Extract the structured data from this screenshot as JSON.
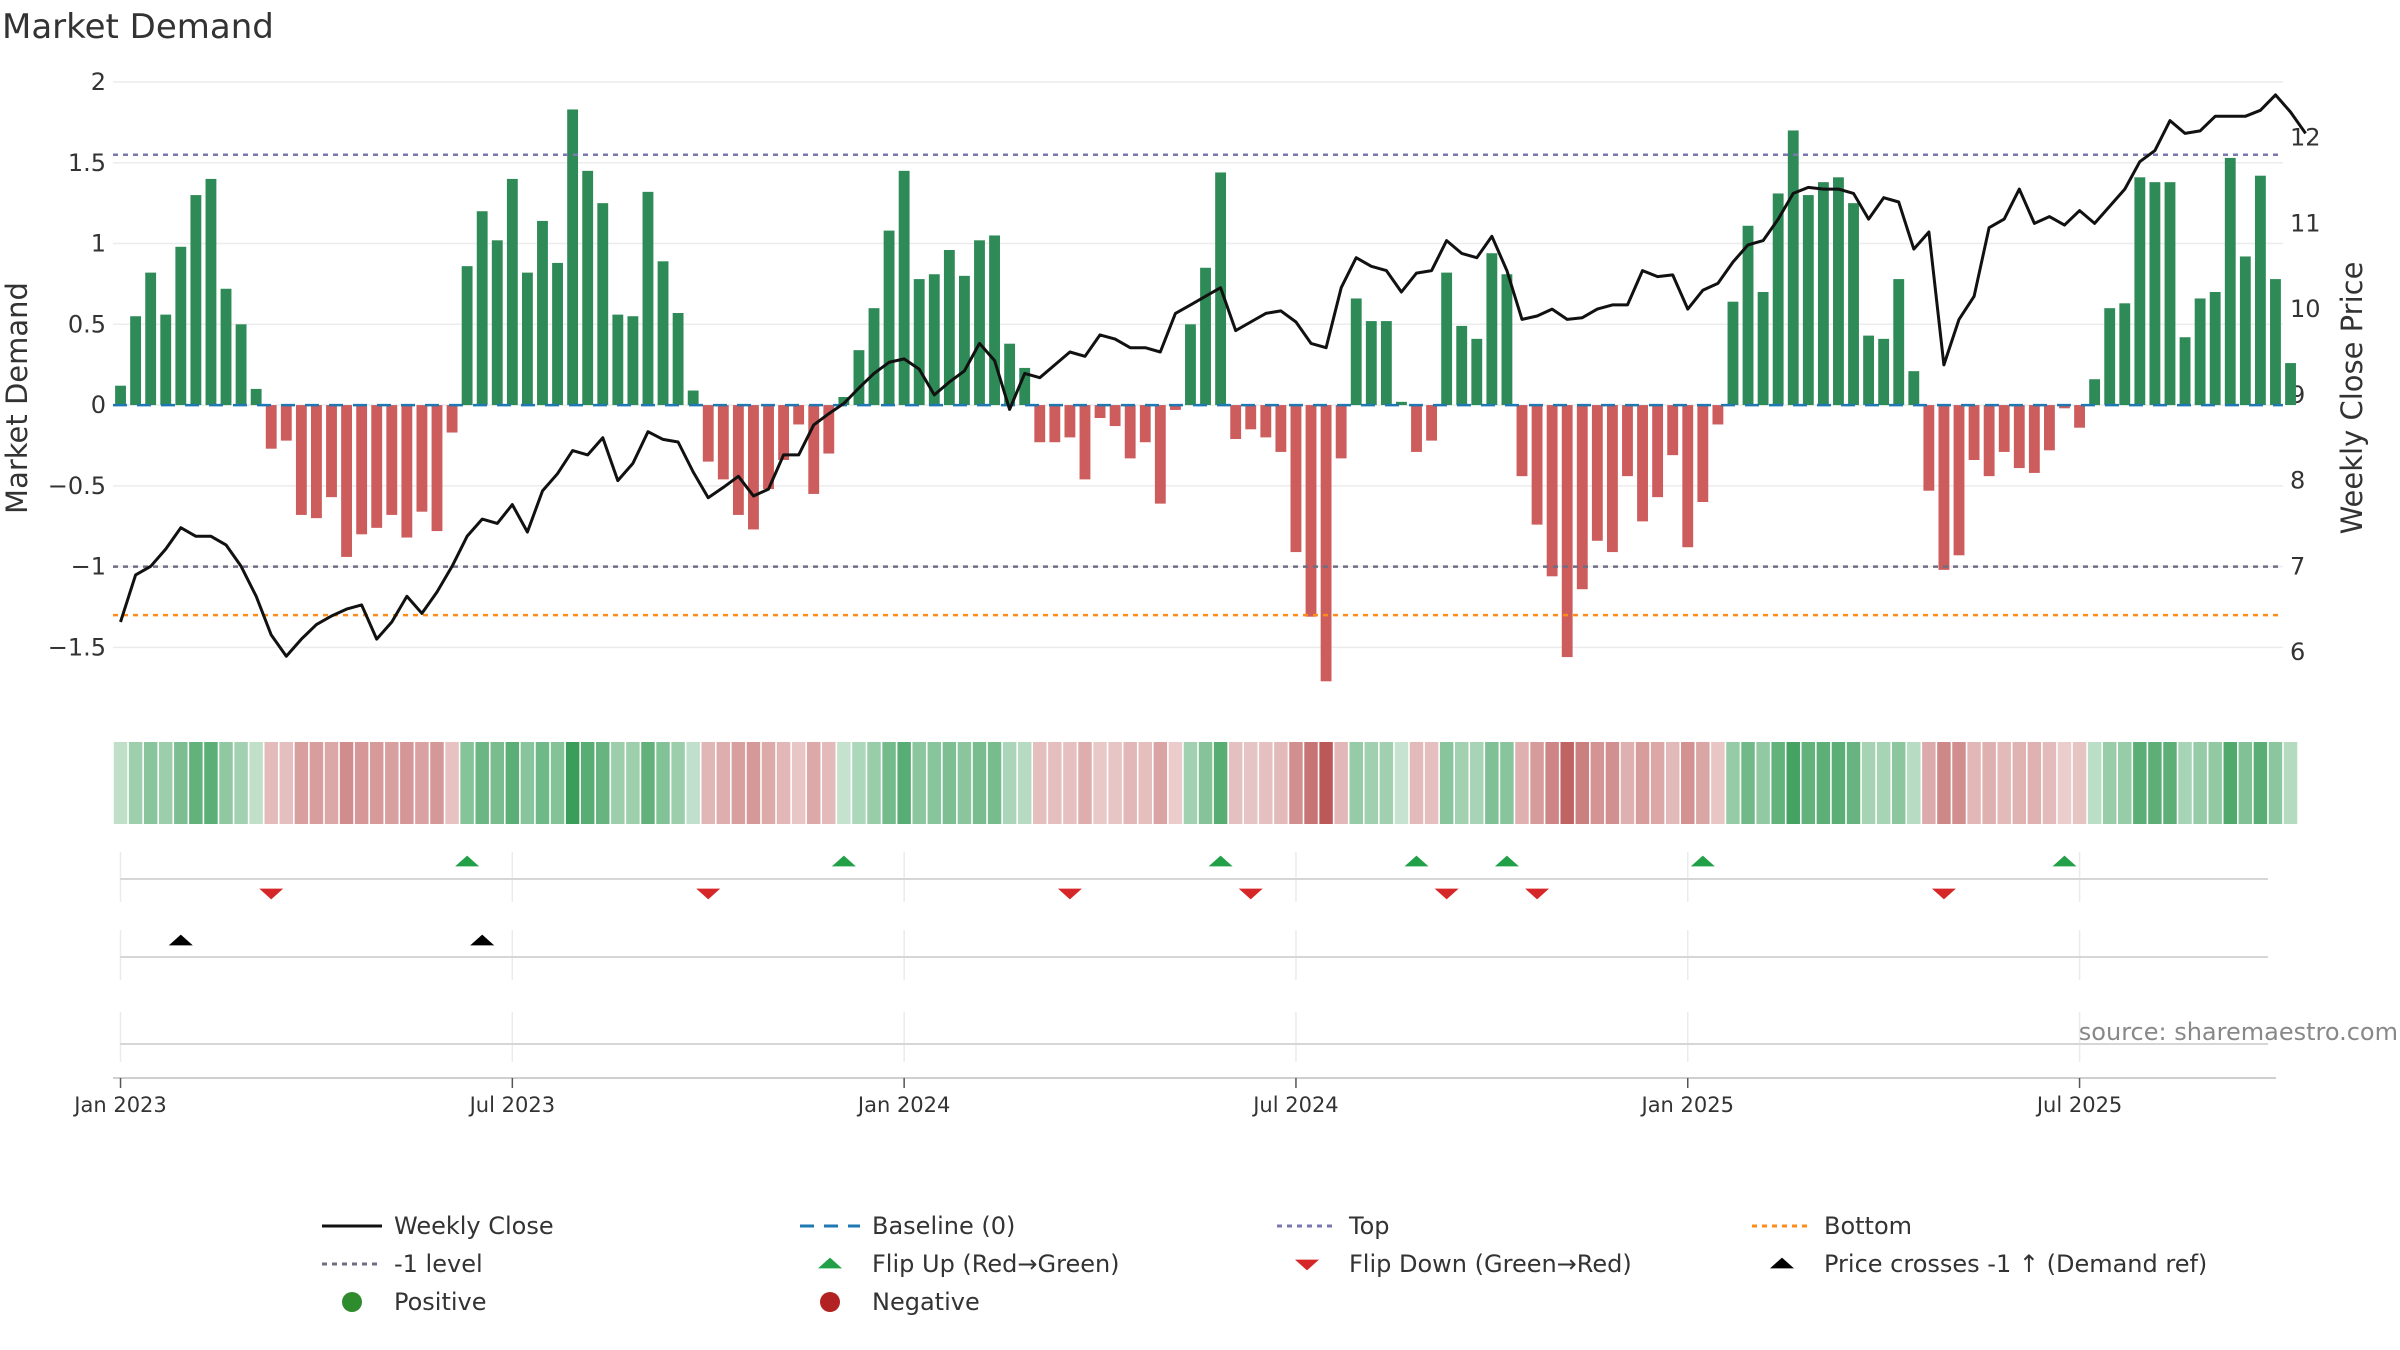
{
  "chart_data": {
    "type": "bar",
    "title": "Market Demand",
    "ylabel_left": "Market Demand",
    "ylabel_right": "Weekly Close Price",
    "left_axis": {
      "ylim": [
        -1.9,
        2
      ],
      "ticks": [
        -1.5,
        -1,
        -0.5,
        0,
        0.5,
        1,
        1.5,
        2
      ],
      "tick_labels": [
        "−1.5",
        "−1",
        "−0.5",
        "0",
        "0.5",
        "1",
        "1.5",
        "2"
      ]
    },
    "right_axis": {
      "ylim": [
        5.3,
        12.65
      ],
      "ticks": [
        6,
        7,
        8,
        9,
        10,
        11,
        12
      ],
      "tick_labels": [
        "6",
        "7",
        "8",
        "9",
        "10",
        "11",
        "12"
      ]
    },
    "x_ticks": [
      {
        "label": "Jan 2023",
        "week": 1
      },
      {
        "label": "Jul 2023",
        "week": 27
      },
      {
        "label": "Jan 2024",
        "week": 53
      },
      {
        "label": "Jul 2024",
        "week": 79
      },
      {
        "label": "Jan 2025",
        "week": 105
      },
      {
        "label": "Jul 2025",
        "week": 131
      }
    ],
    "n_weeks": 144,
    "reference_lines": {
      "top": 1.55,
      "bottom": -1.3,
      "minus_one": -1,
      "baseline": 0
    },
    "series": [
      {
        "name": "Market Demand",
        "type": "bar",
        "values": [
          0.12,
          0.55,
          0.82,
          0.56,
          0.98,
          1.3,
          1.4,
          0.72,
          0.5,
          0.1,
          -0.27,
          -0.22,
          -0.68,
          -0.7,
          -0.57,
          -0.94,
          -0.8,
          -0.76,
          -0.68,
          -0.82,
          -0.66,
          -0.78,
          -0.17,
          0.86,
          1.2,
          1.02,
          1.4,
          0.82,
          1.14,
          0.88,
          1.83,
          1.45,
          1.25,
          0.56,
          0.55,
          1.32,
          0.89,
          0.57,
          0.09,
          -0.35,
          -0.46,
          -0.68,
          -0.77,
          -0.52,
          -0.34,
          -0.12,
          -0.55,
          -0.3,
          0.05,
          0.34,
          0.6,
          1.08,
          1.45,
          0.78,
          0.81,
          0.96,
          0.8,
          1.02,
          1.05,
          0.38,
          0.23,
          -0.23,
          -0.23,
          -0.2,
          -0.46,
          -0.08,
          -0.13,
          -0.33,
          -0.23,
          -0.61,
          -0.03,
          0.5,
          0.85,
          1.44,
          -0.21,
          -0.15,
          -0.2,
          -0.29,
          -0.91,
          -1.31,
          -1.71,
          -0.33,
          0.66,
          0.52,
          0.52,
          0.02,
          -0.29,
          -0.22,
          0.82,
          0.49,
          0.41,
          0.94,
          0.81,
          -0.44,
          -0.74,
          -1.06,
          -1.56,
          -1.14,
          -0.84,
          -0.91,
          -0.44,
          -0.72,
          -0.57,
          -0.31,
          -0.88,
          -0.6,
          -0.12,
          0.64,
          1.11,
          0.7,
          1.31,
          1.7,
          1.3,
          1.38,
          1.41,
          1.25,
          0.43,
          0.41,
          0.78,
          0.21,
          -0.53,
          -1.02,
          -0.93,
          -0.34,
          -0.44,
          -0.29,
          -0.39,
          -0.42,
          -0.28,
          -0.02,
          -0.14,
          0.16,
          0.6,
          0.63,
          1.41,
          1.38,
          1.38,
          0.42,
          0.66,
          0.7,
          1.53,
          0.92,
          1.42,
          0.78,
          0.26
        ]
      },
      {
        "name": "Weekly Close",
        "type": "line",
        "values": [
          6.35,
          6.9,
          7.0,
          7.2,
          7.45,
          7.35,
          7.35,
          7.25,
          7.0,
          6.65,
          6.2,
          5.95,
          6.15,
          6.32,
          6.42,
          6.5,
          6.55,
          6.15,
          6.35,
          6.65,
          6.45,
          6.7,
          7.0,
          7.35,
          7.55,
          7.5,
          7.72,
          7.4,
          7.88,
          8.08,
          8.35,
          8.3,
          8.5,
          8.0,
          8.2,
          8.57,
          8.48,
          8.45,
          8.1,
          7.8,
          7.92,
          8.05,
          7.82,
          7.9,
          8.3,
          8.3,
          8.65,
          8.78,
          8.9,
          9.08,
          9.25,
          9.38,
          9.42,
          9.3,
          9.0,
          9.15,
          9.28,
          9.6,
          9.4,
          8.83,
          9.25,
          9.2,
          9.35,
          9.5,
          9.45,
          9.7,
          9.65,
          9.55,
          9.55,
          9.5,
          9.95,
          10.05,
          10.15,
          10.25,
          9.75,
          9.85,
          9.95,
          9.98,
          9.85,
          9.6,
          9.55,
          10.25,
          10.6,
          10.5,
          10.45,
          10.2,
          10.42,
          10.45,
          10.8,
          10.65,
          10.6,
          10.85,
          10.45,
          9.88,
          9.92,
          10.0,
          9.88,
          9.9,
          10.0,
          10.05,
          10.05,
          10.45,
          10.38,
          10.4,
          10.0,
          10.22,
          10.3,
          10.55,
          10.75,
          10.8,
          11.05,
          11.35,
          11.42,
          11.4,
          11.4,
          11.35,
          11.05,
          11.3,
          11.25,
          10.7,
          10.9,
          9.35,
          9.88,
          10.15,
          10.95,
          11.05,
          11.4,
          11.0,
          11.08,
          10.98,
          11.15,
          11.0,
          11.2,
          11.4,
          11.72,
          11.85,
          12.2,
          12.05,
          12.08,
          12.25,
          12.25,
          12.25,
          12.32,
          12.5,
          12.3,
          12.05
        ]
      }
    ],
    "flip_up_weeks": [
      23,
      48,
      73,
      86,
      92,
      105,
      129
    ],
    "flip_down_weeks": [
      10,
      39,
      63,
      75,
      88,
      94,
      121
    ],
    "price_cross_weeks": [
      4,
      24
    ],
    "colors": {
      "bar_positive": "#2e8b57",
      "bar_negative": "#cd5c5c",
      "price_line": "#111111",
      "baseline": "#1f77b4",
      "top_line": "#7b78b0",
      "minus_one_line": "#6e6e82",
      "bottom_line": "#ff8c1a",
      "flip_up": "#22a047",
      "flip_down": "#d62728",
      "price_cross": "#000000",
      "positive_dot": "#2e8b2e",
      "negative_dot": "#b22222",
      "strip_positive_base": "#3a9e5a",
      "strip_negative_base": "#b85050"
    },
    "legend": [
      "Weekly Close",
      "Baseline (0)",
      "Top",
      "Bottom",
      "-1 level",
      "Flip Up (Red→Green)",
      "Flip Down (Green→Red)",
      "Price crosses -1 ↑ (Demand ref)",
      "Positive",
      "Negative"
    ],
    "source": "source: sharemaestro.com"
  }
}
